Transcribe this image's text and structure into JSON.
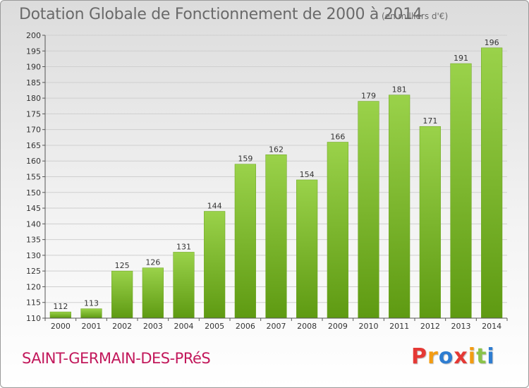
{
  "title": "Dotation Globale de Fonctionnement de 2000 à 2014",
  "subtitle": "(en milliers d'€)",
  "commune": "SAINT-GERMAIN-DES-PRéS",
  "logo": {
    "letters": [
      "P",
      "r",
      "o",
      "x",
      "i",
      "t",
      "i"
    ],
    "colors": [
      "#e53935",
      "#f39c12",
      "#2e7dd1",
      "#e53935",
      "#f39c12",
      "#8bc34a",
      "#2e7dd1"
    ]
  },
  "colors": {
    "bar_light": "#9ad24a",
    "bar_dark": "#5e9a12",
    "accent": "#c2185b"
  },
  "chart_data": {
    "type": "bar",
    "title": "Dotation Globale de Fonctionnement de 2000 à 2014",
    "subtitle": "(en milliers d'€)",
    "categories": [
      "2000",
      "2001",
      "2002",
      "2003",
      "2004",
      "2005",
      "2006",
      "2007",
      "2008",
      "2009",
      "2010",
      "2011",
      "2012",
      "2013",
      "2014"
    ],
    "values": [
      112,
      113,
      125,
      126,
      131,
      144,
      159,
      162,
      154,
      166,
      179,
      181,
      171,
      191,
      196
    ],
    "ylim": [
      110,
      200
    ],
    "yticks": [
      110,
      115,
      120,
      125,
      130,
      135,
      140,
      145,
      150,
      155,
      160,
      165,
      170,
      175,
      180,
      185,
      190,
      195,
      200
    ],
    "grid": true,
    "data_labels": true
  }
}
